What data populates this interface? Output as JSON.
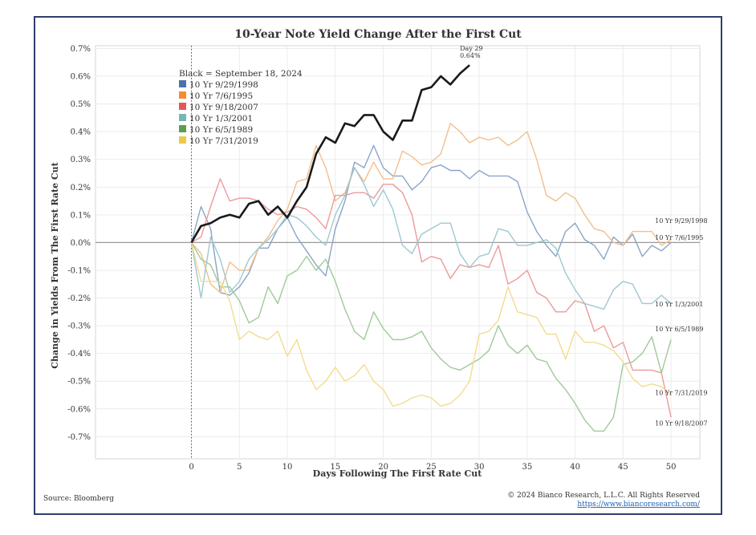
{
  "chart_data": {
    "type": "line",
    "title": "10-Year Note Yield Change After the First Cut",
    "xlabel": "Days Following The First Rate Cut",
    "ylabel": "Change in Yields From The First Rate Cut",
    "xlim": [
      -10,
      53
    ],
    "ylim": [
      -0.78,
      0.71
    ],
    "xticks": [
      0,
      5,
      10,
      15,
      20,
      25,
      30,
      35,
      40,
      45,
      50
    ],
    "xtick_labels": [
      "0",
      "5",
      "10",
      "15",
      "20",
      "25",
      "30",
      "35",
      "40",
      "45",
      "50"
    ],
    "yticks": [
      0.7,
      0.6,
      0.5,
      0.4,
      0.3,
      0.2,
      0.1,
      0.0,
      -0.1,
      -0.2,
      -0.3,
      -0.4,
      -0.5,
      -0.6,
      -0.7
    ],
    "ytick_labels": [
      "0.7%",
      "0.6%",
      "0.5%",
      "0.4%",
      "0.3%",
      "0.2%",
      "0.1%",
      "0.0%",
      "-0.1%",
      "-0.2%",
      "-0.3%",
      "-0.4%",
      "-0.5%",
      "-0.6%",
      "-0.7%"
    ],
    "grid": true,
    "legend_position": "top-left",
    "legend_header": "Black = September 18, 2024",
    "annotation": {
      "line1": "Day 29",
      "line2": "0.64%",
      "x": 29,
      "y": 0.64
    },
    "series": [
      {
        "name": "10 Yr 9/29/1998",
        "color": "#8aa4c6",
        "legend_color": "#4a73a8",
        "end_label": "10 Yr 9/29/1998",
        "label_at": 0.07,
        "values": [
          0,
          0.13,
          0.05,
          -0.18,
          -0.19,
          -0.16,
          -0.11,
          -0.02,
          -0.02,
          0.05,
          0.09,
          0.02,
          -0.03,
          -0.08,
          -0.12,
          0.05,
          0.15,
          0.29,
          0.27,
          0.35,
          0.27,
          0.24,
          0.24,
          0.19,
          0.22,
          0.27,
          0.28,
          0.26,
          0.26,
          0.23,
          0.26,
          0.24,
          0.24,
          0.24,
          0.22,
          0.11,
          0.04,
          -0.01,
          -0.05,
          0.04,
          0.07,
          0.01,
          -0.01,
          -0.06,
          0.02,
          -0.01,
          0.03,
          -0.05,
          -0.01,
          -0.03,
          0.0
        ]
      },
      {
        "name": "10 Yr 7/6/1995",
        "color": "#f2be8e",
        "legend_color": "#f28e2b",
        "end_label": "10 Yr 7/6/1995",
        "label_at": 0.01,
        "values": [
          0,
          -0.04,
          -0.15,
          -0.18,
          -0.07,
          -0.1,
          -0.1,
          -0.02,
          0.02,
          0.08,
          0.12,
          0.22,
          0.23,
          0.35,
          0.27,
          0.15,
          0.18,
          0.27,
          0.22,
          0.29,
          0.23,
          0.23,
          0.33,
          0.31,
          0.28,
          0.29,
          0.32,
          0.43,
          0.4,
          0.36,
          0.38,
          0.37,
          0.38,
          0.35,
          0.37,
          0.4,
          0.3,
          0.17,
          0.15,
          0.18,
          0.16,
          0.1,
          0.05,
          0.04,
          0.0,
          -0.01,
          0.04,
          0.04,
          0.04,
          -0.01,
          0.01
        ]
      },
      {
        "name": "10 Yr 9/18/2007",
        "color": "#ec9a9a",
        "legend_color": "#e15759",
        "end_label": "10 Yr 9/18/2007",
        "label_at": -0.66,
        "values": [
          0,
          0.02,
          0.13,
          0.23,
          0.15,
          0.16,
          0.16,
          0.15,
          0.12,
          0.1,
          0.11,
          0.13,
          0.12,
          0.09,
          0.05,
          0.17,
          0.17,
          0.18,
          0.18,
          0.16,
          0.21,
          0.21,
          0.18,
          0.1,
          -0.07,
          -0.05,
          -0.06,
          -0.13,
          -0.08,
          -0.09,
          -0.08,
          -0.09,
          -0.01,
          -0.15,
          -0.13,
          -0.1,
          -0.18,
          -0.2,
          -0.25,
          -0.25,
          -0.21,
          -0.22,
          -0.32,
          -0.3,
          -0.38,
          -0.36,
          -0.46,
          -0.46,
          -0.46,
          -0.47,
          -0.63
        ]
      },
      {
        "name": "10 Yr 1/3/2001",
        "color": "#9ec8d2",
        "legend_color": "#76b7b2",
        "end_label": "10 Yr 1/3/2001",
        "label_at": -0.23,
        "values": [
          0,
          -0.2,
          0.02,
          -0.06,
          -0.18,
          -0.14,
          -0.06,
          -0.02,
          0.01,
          0.05,
          0.1,
          0.09,
          0.06,
          0.02,
          -0.01,
          0.1,
          0.17,
          0.27,
          0.21,
          0.13,
          0.19,
          0.12,
          -0.01,
          -0.04,
          0.03,
          0.05,
          0.07,
          0.07,
          -0.04,
          -0.09,
          -0.05,
          -0.04,
          0.05,
          0.04,
          -0.01,
          -0.01,
          0.0,
          0.01,
          -0.02,
          -0.11,
          -0.17,
          -0.22,
          -0.23,
          -0.24,
          -0.17,
          -0.14,
          -0.15,
          -0.22,
          -0.22,
          -0.19,
          -0.22
        ]
      },
      {
        "name": "10 Yr 6/5/1989",
        "color": "#9fca98",
        "legend_color": "#59a14f",
        "end_label": "10 Yr 6/5/1989",
        "label_at": -0.32,
        "values": [
          0,
          -0.06,
          -0.08,
          -0.16,
          -0.16,
          -0.21,
          -0.29,
          -0.27,
          -0.16,
          -0.22,
          -0.12,
          -0.1,
          -0.05,
          -0.1,
          -0.06,
          -0.14,
          -0.24,
          -0.32,
          -0.35,
          -0.25,
          -0.31,
          -0.35,
          -0.35,
          -0.34,
          -0.32,
          -0.38,
          -0.42,
          -0.45,
          -0.46,
          -0.44,
          -0.42,
          -0.39,
          -0.3,
          -0.37,
          -0.4,
          -0.37,
          -0.42,
          -0.43,
          -0.49,
          -0.53,
          -0.58,
          -0.64,
          -0.68,
          -0.68,
          -0.63,
          -0.44,
          -0.43,
          -0.4,
          -0.34,
          -0.47,
          -0.35
        ]
      },
      {
        "name": "10 Yr 7/31/2019",
        "color": "#f3dc8e",
        "legend_color": "#edc948",
        "end_label": "10 Yr 7/31/2019",
        "label_at": -0.55,
        "values": [
          0,
          -0.14,
          -0.14,
          -0.14,
          -0.21,
          -0.35,
          -0.32,
          -0.34,
          -0.35,
          -0.32,
          -0.41,
          -0.35,
          -0.46,
          -0.53,
          -0.5,
          -0.45,
          -0.5,
          -0.48,
          -0.44,
          -0.5,
          -0.53,
          -0.59,
          -0.58,
          -0.56,
          -0.55,
          -0.56,
          -0.59,
          -0.58,
          -0.55,
          -0.5,
          -0.33,
          -0.32,
          -0.28,
          -0.16,
          -0.25,
          -0.26,
          -0.27,
          -0.33,
          -0.33,
          -0.42,
          -0.32,
          -0.36,
          -0.36,
          -0.37,
          -0.39,
          -0.43,
          -0.49,
          -0.52,
          -0.51,
          -0.52,
          -0.55
        ]
      },
      {
        "name": "Black = September 18, 2024",
        "color": "#1a1a1a",
        "values": [
          0,
          0.06,
          0.07,
          0.09,
          0.1,
          0.09,
          0.14,
          0.15,
          0.1,
          0.13,
          0.09,
          0.15,
          0.2,
          0.32,
          0.38,
          0.36,
          0.43,
          0.42,
          0.46,
          0.46,
          0.4,
          0.37,
          0.44,
          0.44,
          0.55,
          0.56,
          0.6,
          0.57,
          0.61,
          0.64
        ]
      }
    ]
  },
  "footer": {
    "source": "Source: Bloomberg",
    "copyright": "© 2024 Bianco Research, L.L.C. All Rights Reserved",
    "url": "https://www.biancoresearch.com/"
  }
}
